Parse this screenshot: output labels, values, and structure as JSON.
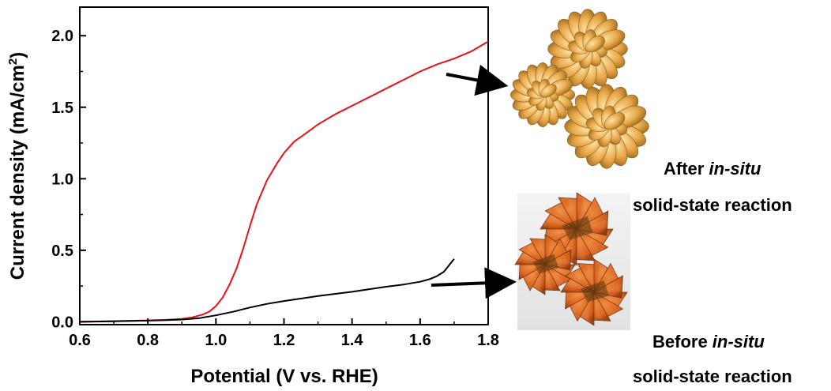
{
  "chart_data": {
    "type": "line",
    "xlabel": "Potential (V vs. RHE)",
    "ylabel_main": "Current density (mA/cm",
    "ylabel_sup": "2",
    "ylabel_end": ")",
    "xlim": [
      0.6,
      1.8
    ],
    "ylim": [
      -0.02,
      2.2
    ],
    "xticks": [
      "0.6",
      "0.8",
      "1.0",
      "1.2",
      "1.4",
      "1.6",
      "1.8"
    ],
    "yticks": [
      "0.0",
      "0.5",
      "1.0",
      "1.5",
      "2.0"
    ],
    "grid": false,
    "series": [
      {
        "color": "#e8101a",
        "x": [
          0.6,
          0.7,
          0.8,
          0.85,
          0.9,
          0.93,
          0.96,
          0.98,
          1.0,
          1.02,
          1.04,
          1.06,
          1.08,
          1.1,
          1.12,
          1.15,
          1.18,
          1.2,
          1.23,
          1.26,
          1.3,
          1.35,
          1.4,
          1.45,
          1.5,
          1.55,
          1.6,
          1.65,
          1.7,
          1.75,
          1.8
        ],
        "y": [
          0.0,
          0.005,
          0.01,
          0.013,
          0.02,
          0.03,
          0.05,
          0.07,
          0.11,
          0.17,
          0.26,
          0.37,
          0.51,
          0.67,
          0.82,
          0.99,
          1.11,
          1.18,
          1.26,
          1.31,
          1.38,
          1.45,
          1.51,
          1.57,
          1.63,
          1.69,
          1.75,
          1.8,
          1.84,
          1.89,
          1.96
        ]
      },
      {
        "color": "#000000",
        "x": [
          0.6,
          0.7,
          0.8,
          0.85,
          0.9,
          0.95,
          1.0,
          1.05,
          1.1,
          1.15,
          1.2,
          1.3,
          1.4,
          1.5,
          1.55,
          1.6,
          1.63,
          1.65,
          1.67,
          1.68,
          1.69,
          1.7
        ],
        "y": [
          0.0,
          0.004,
          0.008,
          0.011,
          0.016,
          0.025,
          0.045,
          0.07,
          0.1,
          0.125,
          0.145,
          0.18,
          0.21,
          0.245,
          0.26,
          0.28,
          0.3,
          0.32,
          0.35,
          0.38,
          0.41,
          0.44
        ]
      }
    ]
  },
  "annotations": {
    "after_prefix": "After ",
    "after_italic": "in-situ",
    "after_line2": "solid-state reaction",
    "before_prefix": "Before ",
    "before_italic": "in-situ",
    "before_line2": "solid-state reaction"
  },
  "images": {
    "after_color": "#e8a84a",
    "before_color": "#d9601c"
  }
}
